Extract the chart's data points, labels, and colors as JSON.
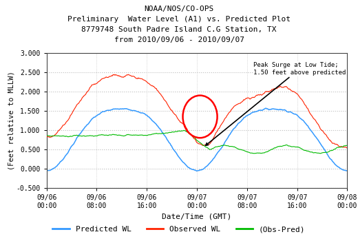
{
  "title_line1": "NOAA/NOS/CO-OPS",
  "title_line2": "Preliminary  Water Level (A1) vs. Predicted Plot",
  "title_line3": "8779748 South Padre Island C.G Station, TX",
  "title_line4": "from 2010/09/06 - 2010/09/07",
  "ylabel": "(Feet relative to MLLW)",
  "xlabel": "Date/Time (GMT)",
  "ylim": [
    -0.5,
    3.0
  ],
  "yticks": [
    -0.5,
    0.0,
    0.5,
    1.0,
    1.5,
    2.0,
    2.5,
    3.0
  ],
  "xtick_labels": [
    "09/06\n00:00",
    "09/06\n08:00",
    "09/06\n16:00",
    "09/07\n00:00",
    "09/07\n08:00",
    "09/07\n16:00",
    "09/08\n00:00"
  ],
  "predicted_color": "#3399ff",
  "observed_color": "#ff2200",
  "diff_color": "#00bb00",
  "annotation_text": "Peak Surge at Low Tide;\n1.50 feet above predicted",
  "bg_color": "#ffffff",
  "grid_color": "#bbbbbb"
}
